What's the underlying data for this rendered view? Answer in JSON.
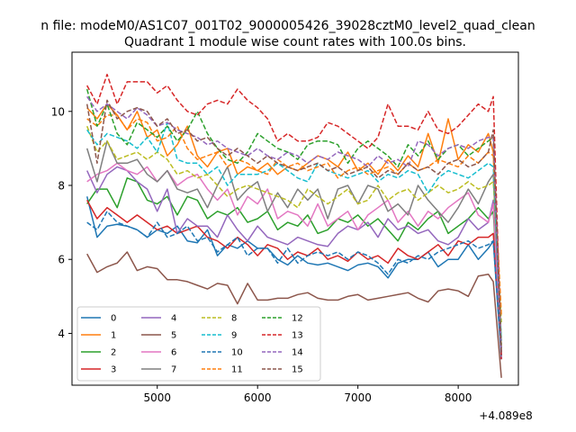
{
  "figure": {
    "suptitle": "n file: modeM0/AS1C07_001T02_9000005426_39028cztM0_level2_quad_clean",
    "title": "Quadrant 1 module wise count rates with 100.0s bins.",
    "x_offset_label": "+4.089e8"
  },
  "chart_data": {
    "type": "line",
    "title": "Quadrant 1 module wise count rates with 100.0s bins.",
    "xlabel": "",
    "ylabel": "",
    "x_offset": "+4.089e8",
    "xlim": [
      4150,
      8600
    ],
    "ylim": [
      2.6,
      11.6
    ],
    "x_ticks": [
      5000,
      6000,
      7000,
      8000
    ],
    "y_ticks": [
      4,
      6,
      8,
      10
    ],
    "x_tick_labels": [
      "5000",
      "6000",
      "7000",
      "8000"
    ],
    "y_tick_labels": [
      "4",
      "6",
      "8",
      "10"
    ],
    "x": [
      4300,
      4400,
      4500,
      4600,
      4700,
      4800,
      4900,
      5000,
      5100,
      5200,
      5300,
      5400,
      5500,
      5600,
      5700,
      5800,
      5900,
      6000,
      6100,
      6200,
      6300,
      6400,
      6500,
      6600,
      6700,
      6800,
      6900,
      7000,
      7100,
      7200,
      7300,
      7400,
      7500,
      7600,
      7700,
      7800,
      7900,
      8000,
      8100,
      8200,
      8300,
      8350,
      8430
    ],
    "legend_position": "lower-left",
    "legend_columns": 4,
    "series": [
      {
        "name": "0",
        "color": "#1f77b4",
        "dash": "solid",
        "values": [
          7.7,
          6.6,
          6.9,
          6.95,
          6.9,
          6.8,
          6.6,
          6.8,
          6.7,
          6.9,
          6.5,
          6.45,
          6.8,
          6.1,
          6.4,
          6.3,
          6.5,
          6.3,
          6.3,
          6.0,
          5.85,
          6.1,
          5.9,
          5.85,
          5.9,
          5.8,
          5.7,
          5.85,
          5.9,
          5.8,
          5.5,
          5.9,
          6.0,
          6.0,
          6.2,
          5.8,
          6.0,
          6.0,
          6.4,
          6.0,
          6.3,
          6.5,
          3.3
        ]
      },
      {
        "name": "1",
        "color": "#ff7f0e",
        "dash": "solid",
        "values": [
          10.1,
          9.8,
          10.2,
          9.9,
          9.5,
          10.0,
          9.3,
          9.5,
          8.8,
          9.1,
          9.6,
          8.8,
          8.5,
          8.9,
          9.0,
          8.3,
          8.5,
          8.4,
          8.6,
          8.3,
          8.5,
          8.4,
          8.6,
          8.8,
          8.7,
          8.5,
          8.9,
          8.4,
          8.6,
          8.3,
          8.7,
          8.4,
          8.8,
          8.5,
          9.4,
          8.6,
          9.8,
          8.7,
          9.1,
          8.9,
          9.4,
          8.9,
          3.6
        ]
      },
      {
        "name": "2",
        "color": "#2ca02c",
        "dash": "solid",
        "values": [
          7.5,
          7.9,
          7.9,
          7.4,
          8.2,
          8.1,
          7.6,
          7.5,
          7.7,
          7.2,
          7.7,
          7.6,
          7.1,
          7.3,
          7.2,
          7.4,
          7.0,
          7.1,
          7.3,
          6.8,
          7.0,
          6.9,
          7.2,
          6.7,
          6.8,
          7.1,
          7.0,
          7.2,
          6.9,
          7.1,
          6.8,
          6.5,
          7.0,
          6.8,
          7.1,
          7.3,
          6.7,
          6.9,
          7.1,
          7.4,
          7.1,
          7.3,
          3.6
        ]
      },
      {
        "name": "3",
        "color": "#d62728",
        "dash": "solid",
        "values": [
          7.6,
          7.1,
          7.4,
          7.2,
          7.0,
          7.2,
          7.0,
          6.8,
          6.9,
          6.7,
          6.8,
          6.9,
          6.6,
          6.5,
          6.3,
          6.6,
          6.4,
          6.1,
          6.4,
          6.3,
          6.0,
          6.2,
          6.1,
          6.3,
          6.0,
          6.1,
          5.95,
          6.2,
          6.0,
          6.1,
          5.9,
          6.3,
          6.1,
          6.0,
          6.2,
          6.4,
          6.1,
          6.5,
          6.4,
          6.6,
          6.6,
          6.7,
          3.4
        ]
      },
      {
        "name": "4",
        "color": "#9467bd",
        "dash": "solid",
        "values": [
          8.4,
          7.8,
          8.3,
          8.5,
          8.4,
          8.1,
          7.9,
          7.3,
          7.9,
          6.7,
          7.1,
          6.9,
          6.9,
          6.6,
          7.2,
          6.8,
          6.5,
          6.9,
          6.6,
          6.5,
          6.4,
          6.6,
          6.5,
          6.4,
          6.35,
          6.7,
          6.9,
          6.8,
          7.0,
          6.6,
          7.1,
          6.8,
          6.9,
          6.7,
          6.8,
          6.5,
          6.4,
          6.6,
          7.1,
          6.8,
          7.0,
          7.6,
          3.3
        ]
      },
      {
        "name": "5",
        "color": "#8c564b",
        "dash": "solid",
        "values": [
          6.15,
          5.65,
          5.8,
          5.9,
          6.2,
          5.7,
          5.8,
          5.75,
          5.45,
          5.45,
          5.4,
          5.3,
          5.2,
          5.35,
          5.3,
          4.8,
          5.35,
          4.9,
          4.9,
          4.95,
          4.95,
          5.05,
          5.1,
          4.95,
          4.9,
          4.9,
          5.0,
          5.05,
          4.9,
          4.95,
          5.0,
          5.05,
          5.1,
          4.95,
          4.85,
          5.15,
          5.2,
          5.15,
          5.0,
          5.55,
          5.6,
          5.4,
          2.8
        ]
      },
      {
        "name": "6",
        "color": "#e377c2",
        "dash": "solid",
        "values": [
          8.1,
          8.3,
          8.4,
          8.6,
          8.4,
          8.3,
          8.5,
          8.1,
          8.4,
          8.0,
          8.2,
          8.3,
          7.9,
          7.6,
          7.9,
          7.2,
          7.7,
          7.5,
          7.9,
          7.1,
          7.3,
          7.2,
          6.9,
          7.5,
          6.9,
          7.1,
          7.3,
          6.8,
          7.2,
          7.4,
          7.6,
          7.0,
          7.3,
          6.9,
          7.3,
          7.1,
          7.4,
          7.6,
          7.8,
          7.2,
          7.0,
          7.5,
          3.5
        ]
      },
      {
        "name": "7",
        "color": "#7f7f7f",
        "dash": "solid",
        "values": [
          9.0,
          8.1,
          9.2,
          8.6,
          8.6,
          8.7,
          8.3,
          8.1,
          8.4,
          7.9,
          7.8,
          7.9,
          7.4,
          8.0,
          8.5,
          7.6,
          7.9,
          8.1,
          7.3,
          7.8,
          7.4,
          7.9,
          7.6,
          7.9,
          7.1,
          7.9,
          8.0,
          7.5,
          8.0,
          7.9,
          7.3,
          7.5,
          7.2,
          8.0,
          7.6,
          7.3,
          7.0,
          7.4,
          7.9,
          7.5,
          8.1,
          8.3,
          3.5
        ]
      },
      {
        "name": "8",
        "color": "#bcbd22",
        "dash": "dashed",
        "values": [
          9.6,
          8.9,
          9.2,
          8.7,
          8.8,
          8.9,
          8.7,
          8.9,
          8.7,
          8.3,
          8.4,
          8.2,
          8.3,
          8.0,
          7.7,
          7.9,
          8.0,
          7.9,
          7.8,
          7.7,
          7.6,
          7.4,
          7.9,
          7.7,
          7.5,
          7.7,
          7.9,
          7.5,
          7.6,
          8.0,
          7.6,
          7.8,
          7.9,
          7.6,
          7.8,
          8.0,
          7.8,
          7.9,
          8.1,
          7.9,
          8.0,
          8.1,
          4.3
        ]
      },
      {
        "name": "9",
        "color": "#17becf",
        "dash": "dashed",
        "values": [
          9.5,
          9.1,
          9.4,
          9.3,
          9.2,
          9.0,
          9.3,
          8.9,
          9.7,
          8.7,
          8.6,
          8.6,
          8.3,
          8.5,
          8.0,
          8.3,
          8.3,
          8.3,
          8.4,
          8.6,
          8.4,
          8.2,
          8.1,
          8.6,
          8.4,
          8.3,
          8.2,
          8.3,
          8.4,
          8.1,
          8.3,
          8.2,
          8.4,
          8.3,
          7.8,
          8.2,
          8.4,
          8.3,
          8.2,
          8.4,
          8.6,
          8.5,
          3.8
        ]
      },
      {
        "name": "10",
        "color": "#1f77b4",
        "dash": "dashed",
        "values": [
          7.0,
          6.8,
          7.3,
          7.0,
          6.9,
          6.8,
          6.6,
          7.0,
          6.6,
          6.7,
          6.9,
          6.5,
          6.6,
          6.2,
          6.4,
          6.6,
          6.1,
          6.3,
          6.3,
          5.9,
          6.3,
          5.9,
          6.1,
          6.2,
          6.1,
          6.2,
          6.0,
          6.2,
          6.1,
          5.9,
          5.6,
          6.0,
          5.9,
          6.1,
          6.0,
          6.2,
          6.3,
          6.4,
          6.5,
          6.3,
          6.4,
          6.5,
          3.4
        ]
      },
      {
        "name": "11",
        "color": "#ff7f0e",
        "dash": "dashed",
        "values": [
          9.8,
          9.6,
          9.9,
          9.9,
          9.5,
          9.8,
          9.7,
          9.2,
          9.3,
          9.6,
          9.0,
          8.7,
          8.8,
          8.9,
          8.5,
          8.7,
          8.6,
          8.4,
          8.3,
          8.7,
          8.5,
          8.6,
          8.4,
          8.5,
          8.6,
          8.2,
          8.4,
          8.5,
          8.3,
          8.4,
          8.5,
          8.3,
          8.6,
          8.4,
          8.5,
          8.7,
          8.6,
          8.5,
          8.8,
          8.6,
          8.9,
          8.8,
          4.5
        ]
      },
      {
        "name": "12",
        "color": "#2ca02c",
        "dash": "dashed",
        "values": [
          10.6,
          9.6,
          10.2,
          9.4,
          9.1,
          9.7,
          9.5,
          9.3,
          9.6,
          9.2,
          9.5,
          10.0,
          9.4,
          9.0,
          8.7,
          8.6,
          8.9,
          9.4,
          9.2,
          9.0,
          8.9,
          8.7,
          9.1,
          9.2,
          9.2,
          9.1,
          8.6,
          9.0,
          9.2,
          9.0,
          8.8,
          8.5,
          9.1,
          8.8,
          9.2,
          8.7,
          9.0,
          9.1,
          8.8,
          9.0,
          9.2,
          9.3,
          3.7
        ]
      },
      {
        "name": "13",
        "color": "#d62728",
        "dash": "dashed",
        "values": [
          10.7,
          10.2,
          11.0,
          10.2,
          10.8,
          10.8,
          10.8,
          10.5,
          10.7,
          10.3,
          10.0,
          9.9,
          10.2,
          10.3,
          10.2,
          10.6,
          10.3,
          10.1,
          9.8,
          9.2,
          9.4,
          9.2,
          9.2,
          9.3,
          9.7,
          9.6,
          9.4,
          9.2,
          9.0,
          9.3,
          10.2,
          9.6,
          9.6,
          9.5,
          10.0,
          9.5,
          9.4,
          9.6,
          9.9,
          10.2,
          10.0,
          10.4,
          3.3
        ]
      },
      {
        "name": "14",
        "color": "#9467bd",
        "dash": "dashed",
        "values": [
          10.4,
          10.0,
          10.2,
          10.0,
          9.8,
          10.1,
          9.9,
          9.6,
          9.7,
          9.5,
          9.4,
          9.3,
          9.1,
          9.2,
          9.0,
          8.9,
          8.8,
          9.0,
          8.8,
          8.7,
          8.9,
          8.8,
          8.6,
          8.8,
          8.7,
          8.9,
          8.8,
          8.7,
          8.5,
          8.8,
          8.6,
          8.7,
          8.5,
          9.2,
          9.1,
          8.8,
          9.0,
          9.1,
          9.0,
          9.2,
          9.3,
          9.3,
          3.5
        ]
      },
      {
        "name": "15",
        "color": "#8c564b",
        "dash": "dashed",
        "values": [
          10.2,
          8.6,
          10.3,
          9.8,
          10.0,
          10.1,
          10.0,
          9.6,
          9.8,
          9.4,
          9.5,
          9.2,
          9.3,
          9.0,
          8.8,
          9.0,
          8.8,
          8.6,
          8.8,
          8.6,
          8.5,
          8.4,
          8.5,
          8.6,
          8.4,
          8.5,
          8.3,
          8.4,
          8.5,
          8.2,
          8.4,
          8.3,
          8.6,
          8.4,
          8.5,
          8.3,
          8.6,
          8.7,
          8.5,
          8.6,
          8.9,
          9.5,
          3.4
        ]
      }
    ]
  }
}
